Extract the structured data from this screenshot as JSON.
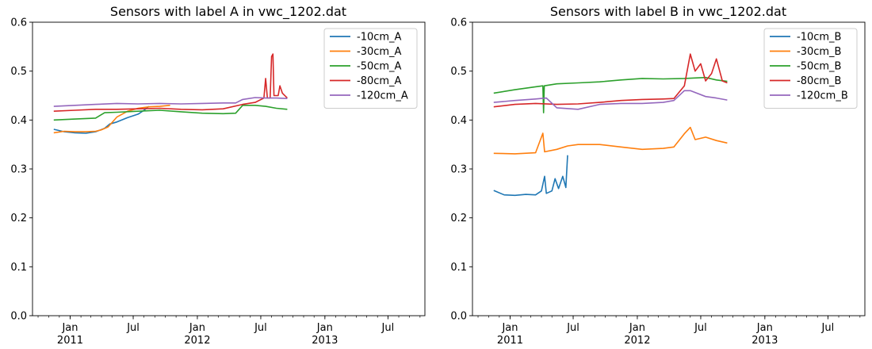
{
  "figure": {
    "background": "#ffffff"
  },
  "chart_data": [
    {
      "type": "line",
      "title": "Sensors with label A in vwc_1202.dat",
      "xlabel": "",
      "ylabel": "",
      "ylim": [
        0.0,
        0.6
      ],
      "yticks": [
        "0.0",
        "0.1",
        "0.2",
        "0.3",
        "0.4",
        "0.5",
        "0.6"
      ],
      "xlim": [
        "2010-09-15",
        "2013-10-15"
      ],
      "xticks": [
        {
          "date": "2011-01-01",
          "label": "Jan",
          "year": "2011"
        },
        {
          "date": "2011-07-01",
          "label": "Jul",
          "year": ""
        },
        {
          "date": "2012-01-01",
          "label": "Jan",
          "year": "2012"
        },
        {
          "date": "2012-07-01",
          "label": "Jul",
          "year": ""
        },
        {
          "date": "2013-01-01",
          "label": "Jan",
          "year": "2013"
        },
        {
          "date": "2013-07-01",
          "label": "Jul",
          "year": ""
        }
      ],
      "grid": false,
      "legend_position": "top-right",
      "series": [
        {
          "name": "-10cm_A",
          "color": "#1f77b4",
          "points": [
            [
              "2010-11-15",
              0.381
            ],
            [
              "2010-12-15",
              0.376
            ],
            [
              "2011-01-15",
              0.374
            ],
            [
              "2011-02-15",
              0.373
            ],
            [
              "2011-03-15",
              0.376
            ],
            [
              "2011-04-10",
              0.383
            ],
            [
              "2011-04-25",
              0.392
            ],
            [
              "2011-05-15",
              0.396
            ],
            [
              "2011-06-15",
              0.405
            ],
            [
              "2011-07-15",
              0.412
            ],
            [
              "2011-08-01",
              0.42
            ],
            [
              "2011-08-15",
              0.428
            ]
          ]
        },
        {
          "name": "-30cm_A",
          "color": "#ff7f0e",
          "points": [
            [
              "2010-11-15",
              0.374
            ],
            [
              "2010-12-15",
              0.377
            ],
            [
              "2011-01-15",
              0.376
            ],
            [
              "2011-02-15",
              0.376
            ],
            [
              "2011-03-15",
              0.377
            ],
            [
              "2011-04-01",
              0.38
            ],
            [
              "2011-04-20",
              0.386
            ],
            [
              "2011-05-15",
              0.406
            ],
            [
              "2011-06-15",
              0.418
            ],
            [
              "2011-07-15",
              0.424
            ],
            [
              "2011-08-15",
              0.427
            ],
            [
              "2011-09-15",
              0.428
            ],
            [
              "2011-10-15",
              0.43
            ]
          ]
        },
        {
          "name": "-50cm_A",
          "color": "#2ca02c",
          "points": [
            [
              "2010-11-15",
              0.4
            ],
            [
              "2011-01-15",
              0.402
            ],
            [
              "2011-03-15",
              0.404
            ],
            [
              "2011-04-10",
              0.415
            ],
            [
              "2011-05-15",
              0.416
            ],
            [
              "2011-07-15",
              0.418
            ],
            [
              "2011-09-15",
              0.42
            ],
            [
              "2011-11-15",
              0.417
            ],
            [
              "2012-01-15",
              0.414
            ],
            [
              "2012-03-15",
              0.413
            ],
            [
              "2012-04-20",
              0.414
            ],
            [
              "2012-05-10",
              0.43
            ],
            [
              "2012-06-15",
              0.43
            ],
            [
              "2012-07-15",
              0.428
            ],
            [
              "2012-08-15",
              0.424
            ],
            [
              "2012-09-15",
              0.422
            ]
          ]
        },
        {
          "name": "-80cm_A",
          "color": "#d62728",
          "points": [
            [
              "2010-11-15",
              0.418
            ],
            [
              "2011-01-15",
              0.42
            ],
            [
              "2011-03-15",
              0.422
            ],
            [
              "2011-05-15",
              0.422
            ],
            [
              "2011-07-15",
              0.423
            ],
            [
              "2011-09-15",
              0.424
            ],
            [
              "2011-11-15",
              0.422
            ],
            [
              "2012-01-15",
              0.421
            ],
            [
              "2012-03-15",
              0.423
            ],
            [
              "2012-05-10",
              0.432
            ],
            [
              "2012-06-15",
              0.436
            ],
            [
              "2012-07-10",
              0.445
            ],
            [
              "2012-07-15",
              0.485
            ],
            [
              "2012-07-20",
              0.445
            ],
            [
              "2012-07-28",
              0.445
            ],
            [
              "2012-08-01",
              0.53
            ],
            [
              "2012-08-05",
              0.535
            ],
            [
              "2012-08-08",
              0.45
            ],
            [
              "2012-08-20",
              0.45
            ],
            [
              "2012-08-25",
              0.47
            ],
            [
              "2012-09-01",
              0.455
            ],
            [
              "2012-09-15",
              0.445
            ]
          ]
        },
        {
          "name": "-120cm_A",
          "color": "#9467bd",
          "points": [
            [
              "2010-11-15",
              0.428
            ],
            [
              "2011-01-15",
              0.43
            ],
            [
              "2011-03-15",
              0.432
            ],
            [
              "2011-05-15",
              0.434
            ],
            [
              "2011-07-15",
              0.433
            ],
            [
              "2011-09-15",
              0.434
            ],
            [
              "2011-11-15",
              0.433
            ],
            [
              "2012-01-15",
              0.434
            ],
            [
              "2012-03-15",
              0.435
            ],
            [
              "2012-04-20",
              0.435
            ],
            [
              "2012-05-10",
              0.442
            ],
            [
              "2012-06-15",
              0.446
            ],
            [
              "2012-07-15",
              0.445
            ],
            [
              "2012-08-15",
              0.445
            ],
            [
              "2012-09-15",
              0.444
            ]
          ]
        }
      ]
    },
    {
      "type": "line",
      "title": "Sensors with label B in vwc_1202.dat",
      "xlabel": "",
      "ylabel": "",
      "ylim": [
        0.0,
        0.6
      ],
      "yticks": [
        "0.0",
        "0.1",
        "0.2",
        "0.3",
        "0.4",
        "0.5",
        "0.6"
      ],
      "xlim": [
        "2010-09-15",
        "2013-10-15"
      ],
      "xticks": [
        {
          "date": "2011-01-01",
          "label": "Jan",
          "year": "2011"
        },
        {
          "date": "2011-07-01",
          "label": "Jul",
          "year": ""
        },
        {
          "date": "2012-01-01",
          "label": "Jan",
          "year": "2012"
        },
        {
          "date": "2012-07-01",
          "label": "Jul",
          "year": ""
        },
        {
          "date": "2013-01-01",
          "label": "Jan",
          "year": "2013"
        },
        {
          "date": "2013-07-01",
          "label": "Jul",
          "year": ""
        }
      ],
      "grid": false,
      "legend_position": "top-right",
      "series": [
        {
          "name": "-10cm_B",
          "color": "#1f77b4",
          "points": [
            [
              "2010-11-15",
              0.256
            ],
            [
              "2010-12-15",
              0.247
            ],
            [
              "2011-01-15",
              0.246
            ],
            [
              "2011-02-15",
              0.248
            ],
            [
              "2011-03-15",
              0.247
            ],
            [
              "2011-04-01",
              0.255
            ],
            [
              "2011-04-10",
              0.285
            ],
            [
              "2011-04-15",
              0.25
            ],
            [
              "2011-05-01",
              0.255
            ],
            [
              "2011-05-10",
              0.28
            ],
            [
              "2011-05-20",
              0.26
            ],
            [
              "2011-06-01",
              0.285
            ],
            [
              "2011-06-10",
              0.262
            ],
            [
              "2011-06-15",
              0.328
            ]
          ]
        },
        {
          "name": "-30cm_B",
          "color": "#ff7f0e",
          "points": [
            [
              "2010-11-15",
              0.332
            ],
            [
              "2011-01-15",
              0.331
            ],
            [
              "2011-03-15",
              0.333
            ],
            [
              "2011-04-05",
              0.373
            ],
            [
              "2011-04-10",
              0.335
            ],
            [
              "2011-05-15",
              0.34
            ],
            [
              "2011-06-15",
              0.347
            ],
            [
              "2011-07-15",
              0.35
            ],
            [
              "2011-09-15",
              0.35
            ],
            [
              "2011-11-15",
              0.345
            ],
            [
              "2012-01-15",
              0.34
            ],
            [
              "2012-03-15",
              0.342
            ],
            [
              "2012-04-15",
              0.345
            ],
            [
              "2012-05-15",
              0.372
            ],
            [
              "2012-06-01",
              0.385
            ],
            [
              "2012-06-15",
              0.36
            ],
            [
              "2012-07-15",
              0.365
            ],
            [
              "2012-08-15",
              0.358
            ],
            [
              "2012-09-15",
              0.353
            ]
          ]
        },
        {
          "name": "-50cm_B",
          "color": "#2ca02c",
          "points": [
            [
              "2010-11-15",
              0.455
            ],
            [
              "2011-01-15",
              0.462
            ],
            [
              "2011-03-15",
              0.468
            ],
            [
              "2011-04-05",
              0.47
            ],
            [
              "2011-04-07",
              0.415
            ],
            [
              "2011-04-09",
              0.47
            ],
            [
              "2011-05-15",
              0.474
            ],
            [
              "2011-07-15",
              0.476
            ],
            [
              "2011-09-15",
              0.478
            ],
            [
              "2011-11-15",
              0.482
            ],
            [
              "2012-01-15",
              0.485
            ],
            [
              "2012-03-15",
              0.484
            ],
            [
              "2012-05-15",
              0.485
            ],
            [
              "2012-07-15",
              0.487
            ],
            [
              "2012-08-15",
              0.482
            ],
            [
              "2012-09-15",
              0.479
            ]
          ]
        },
        {
          "name": "-80cm_B",
          "color": "#d62728",
          "points": [
            [
              "2010-11-15",
              0.427
            ],
            [
              "2011-01-15",
              0.432
            ],
            [
              "2011-03-15",
              0.434
            ],
            [
              "2011-05-15",
              0.432
            ],
            [
              "2011-07-15",
              0.433
            ],
            [
              "2011-09-15",
              0.436
            ],
            [
              "2011-11-15",
              0.44
            ],
            [
              "2012-01-15",
              0.442
            ],
            [
              "2012-03-15",
              0.443
            ],
            [
              "2012-04-15",
              0.444
            ],
            [
              "2012-05-15",
              0.47
            ],
            [
              "2012-06-01",
              0.535
            ],
            [
              "2012-06-15",
              0.5
            ],
            [
              "2012-07-01",
              0.515
            ],
            [
              "2012-07-15",
              0.48
            ],
            [
              "2012-08-01",
              0.495
            ],
            [
              "2012-08-15",
              0.525
            ],
            [
              "2012-09-01",
              0.48
            ],
            [
              "2012-09-15",
              0.476
            ]
          ]
        },
        {
          "name": "-120cm_B",
          "color": "#9467bd",
          "points": [
            [
              "2010-11-15",
              0.436
            ],
            [
              "2011-01-15",
              0.44
            ],
            [
              "2011-03-15",
              0.443
            ],
            [
              "2011-04-15",
              0.445
            ],
            [
              "2011-05-15",
              0.425
            ],
            [
              "2011-07-15",
              0.422
            ],
            [
              "2011-09-15",
              0.432
            ],
            [
              "2011-11-15",
              0.434
            ],
            [
              "2012-01-15",
              0.434
            ],
            [
              "2012-03-15",
              0.436
            ],
            [
              "2012-04-15",
              0.44
            ],
            [
              "2012-05-15",
              0.46
            ],
            [
              "2012-06-01",
              0.46
            ],
            [
              "2012-07-15",
              0.448
            ],
            [
              "2012-08-15",
              0.445
            ],
            [
              "2012-09-15",
              0.441
            ]
          ]
        }
      ]
    }
  ]
}
